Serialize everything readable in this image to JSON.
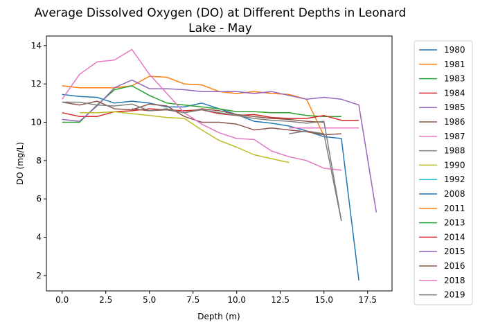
{
  "chart_data": {
    "type": "line",
    "title_line1": "Average Dissolved Oxygen (DO) at Different Depths in Leonard",
    "title_line2": "Lake - May",
    "xlabel": "Depth (m)",
    "ylabel": "DO (mg/L)",
    "xlim": [
      -0.9,
      18.9
    ],
    "ylim": [
      1.2,
      14.5
    ],
    "xticks": [
      0,
      2.5,
      5,
      7.5,
      10,
      12.5,
      15,
      17.5
    ],
    "xtick_labels": [
      "0.0",
      "2.5",
      "5.0",
      "7.5",
      "10.0",
      "12.5",
      "15.0",
      "17.5"
    ],
    "yticks": [
      2,
      4,
      6,
      8,
      10,
      12,
      14
    ],
    "ytick_labels": [
      "2",
      "4",
      "6",
      "8",
      "10",
      "12",
      "14"
    ],
    "grid": false,
    "legend_position": "outside-right",
    "series": [
      {
        "name": "1980",
        "color": "#1f77b4",
        "x": [
          0,
          1,
          2,
          3,
          4,
          5,
          6,
          7,
          8,
          9,
          10,
          11,
          12,
          13,
          14,
          15,
          16,
          17
        ],
        "y": [
          11.45,
          11.35,
          11.3,
          11.0,
          11.1,
          11.0,
          10.8,
          10.8,
          11.0,
          10.7,
          10.4,
          10.05,
          9.95,
          9.8,
          9.55,
          9.25,
          9.15,
          1.75
        ]
      },
      {
        "name": "1981",
        "color": "#ff7f0e",
        "x": [
          0,
          1,
          2,
          3,
          4,
          5,
          6,
          7,
          8,
          9,
          10,
          11,
          12,
          13,
          14,
          15
        ],
        "y": [
          11.9,
          11.8,
          11.8,
          11.8,
          11.9,
          12.4,
          12.35,
          12.0,
          11.95,
          11.6,
          11.5,
          11.6,
          11.5,
          11.45,
          11.2,
          9.3
        ]
      },
      {
        "name": "1983",
        "color": "#2ca02c",
        "x": [
          0,
          1,
          2,
          3,
          4,
          5,
          6,
          7,
          8,
          9,
          10,
          11,
          12,
          13,
          14,
          15,
          16
        ],
        "y": [
          10.0,
          10.0,
          10.9,
          11.7,
          11.9,
          11.4,
          11.0,
          10.9,
          10.8,
          10.7,
          10.55,
          10.55,
          10.5,
          10.5,
          10.35,
          10.3,
          10.3
        ]
      },
      {
        "name": "1984",
        "color": "#d62728",
        "x": [
          0,
          1,
          2,
          3,
          4,
          5,
          6,
          7,
          8,
          9,
          10,
          11,
          12,
          13,
          14,
          15,
          16,
          17
        ],
        "y": [
          10.5,
          10.3,
          10.3,
          10.55,
          10.6,
          10.7,
          10.65,
          10.6,
          10.65,
          10.45,
          10.35,
          10.4,
          10.25,
          10.2,
          10.2,
          10.35,
          10.1,
          10.1
        ]
      },
      {
        "name": "1985",
        "color": "#9467bd",
        "x": [
          0,
          1,
          2,
          3,
          4,
          5,
          6,
          7,
          8,
          9,
          10,
          11,
          12,
          13,
          14,
          15,
          16,
          17,
          18
        ],
        "y": [
          10.15,
          10.05,
          10.85,
          11.8,
          12.2,
          11.75,
          11.75,
          11.7,
          11.6,
          11.6,
          11.6,
          11.5,
          11.6,
          11.4,
          11.2,
          11.3,
          11.2,
          10.9,
          5.3
        ]
      },
      {
        "name": "1986",
        "color": "#8c564b",
        "x": [
          0,
          1,
          2,
          3,
          4,
          5,
          6,
          7,
          8,
          9,
          10,
          11,
          12,
          13,
          14,
          15,
          16
        ],
        "y": [
          11.05,
          10.9,
          11.1,
          10.7,
          10.65,
          10.95,
          10.85,
          10.3,
          10.0,
          10.0,
          9.9,
          9.6,
          9.7,
          9.6,
          9.5,
          9.35,
          9.4
        ]
      },
      {
        "name": "1987",
        "color": "#e377c2",
        "x": [
          13,
          14,
          15,
          16,
          17
        ],
        "y": [
          9.7,
          9.7,
          9.7,
          9.7,
          9.7
        ]
      },
      {
        "name": "1988",
        "color": "#7f7f7f",
        "x": [
          13,
          14,
          15,
          16
        ],
        "y": [
          9.4,
          9.55,
          9.4,
          4.85
        ]
      },
      {
        "name": "1990",
        "color": "#bcbd22",
        "x": [
          1,
          2,
          3,
          4,
          5,
          6,
          7,
          8,
          9,
          10,
          11,
          12,
          13
        ],
        "y": [
          10.5,
          10.5,
          10.55,
          10.45,
          10.35,
          10.25,
          10.2,
          9.6,
          9.05,
          8.7,
          8.3,
          8.1,
          7.9
        ]
      },
      {
        "name": "1992",
        "color": "#17becf",
        "x": [],
        "y": []
      },
      {
        "name": "2008",
        "color": "#1f77b4",
        "x": [],
        "y": []
      },
      {
        "name": "2011",
        "color": "#ff7f0e",
        "x": [],
        "y": []
      },
      {
        "name": "2013",
        "color": "#2ca02c",
        "x": [],
        "y": []
      },
      {
        "name": "2014",
        "color": "#d62728",
        "x": [],
        "y": []
      },
      {
        "name": "2015",
        "color": "#9467bd",
        "x": [],
        "y": []
      },
      {
        "name": "2016",
        "color": "#8c564b",
        "x": [
          4,
          5,
          6,
          7,
          8,
          9,
          10,
          11,
          12,
          13,
          14,
          15
        ],
        "y": [
          10.7,
          10.6,
          10.65,
          10.5,
          10.7,
          10.6,
          10.4,
          10.3,
          10.2,
          10.15,
          10.05,
          10.0
        ]
      },
      {
        "name": "2018",
        "color": "#e377c2",
        "x": [
          0,
          1,
          2,
          3,
          4,
          5,
          6,
          7,
          8,
          9,
          10,
          11,
          12,
          13,
          14,
          15,
          16
        ],
        "y": [
          11.2,
          12.5,
          13.15,
          13.25,
          13.8,
          12.5,
          11.5,
          10.5,
          9.9,
          9.45,
          9.15,
          9.1,
          8.5,
          8.2,
          8.0,
          7.6,
          7.5
        ]
      },
      {
        "name": "2019",
        "color": "#7f7f7f",
        "x": [
          0,
          1,
          2,
          3,
          4,
          5,
          6,
          7,
          8,
          9,
          10,
          11,
          12,
          13,
          14,
          15,
          16
        ],
        "y": [
          11.05,
          11.05,
          10.9,
          10.85,
          10.95,
          10.6,
          10.7,
          10.5,
          10.65,
          10.5,
          10.35,
          10.2,
          10.1,
          10.05,
          9.95,
          10.05,
          4.85
        ]
      }
    ]
  }
}
